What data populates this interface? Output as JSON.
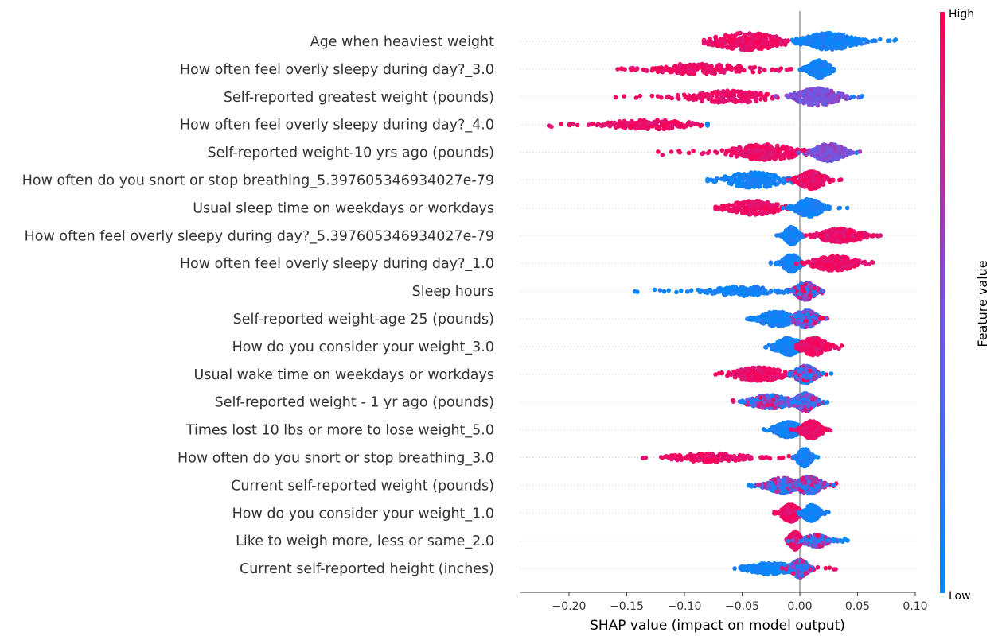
{
  "chart_data": {
    "type": "scatter",
    "subtype": "shap-beeswarm",
    "xlabel": "SHAP value (impact on model output)",
    "xlim": [
      -0.245,
      0.1
    ],
    "xticks": [
      -0.2,
      -0.15,
      -0.1,
      -0.05,
      0.0,
      0.05,
      0.1
    ],
    "xtick_labels": [
      "−0.20",
      "−0.15",
      "−0.10",
      "−0.05",
      "0.00",
      "0.05",
      "0.10"
    ],
    "colorbar": {
      "title": "Feature value",
      "high_label": "High",
      "low_label": "Low",
      "high_color": "#ff0052",
      "low_color": "#008bfb"
    },
    "features": [
      {
        "name": "Age when heaviest weight",
        "min": -0.083,
        "max": 0.083,
        "high_side": "neg",
        "clusters": [
          {
            "c": -0.045,
            "w": 0.04,
            "dens": 1.0,
            "col": "high"
          },
          {
            "c": 0.025,
            "w": 0.03,
            "dens": 1.0,
            "col": "low"
          }
        ]
      },
      {
        "name": "How often feel overly sleepy during day?_3.0",
        "min": -0.158,
        "max": 0.03,
        "high_side": "neg",
        "clusters": [
          {
            "c": -0.09,
            "w": 0.06,
            "dens": 0.6,
            "col": "high"
          },
          {
            "c": 0.017,
            "w": 0.012,
            "dens": 1.0,
            "col": "low"
          }
        ]
      },
      {
        "name": "Self-reported greatest weight (pounds)",
        "min": -0.165,
        "max": 0.06,
        "high_side": "neg",
        "clusters": [
          {
            "c": -0.06,
            "w": 0.05,
            "dens": 0.7,
            "col": "high"
          },
          {
            "c": 0.015,
            "w": 0.025,
            "dens": 1.0,
            "col": "mid"
          }
        ]
      },
      {
        "name": "How often feel overly sleepy during day?_4.0",
        "min": -0.228,
        "max": -0.08,
        "high_side": "neg",
        "clusters": [
          {
            "c": -0.13,
            "w": 0.05,
            "dens": 0.55,
            "col": "high"
          },
          {
            "c": 0.015,
            "w": 0.01,
            "dens": 1.0,
            "col": "low"
          }
        ]
      },
      {
        "name": "Self-reported weight-10 yrs ago (pounds)",
        "min": -0.127,
        "max": 0.052,
        "high_side": "neg",
        "clusters": [
          {
            "c": -0.03,
            "w": 0.04,
            "dens": 0.9,
            "col": "high"
          },
          {
            "c": 0.025,
            "w": 0.018,
            "dens": 1.0,
            "col": "mid"
          }
        ]
      },
      {
        "name": "How often do you snort or stop breathing_5.397605346934027e-79",
        "min": -0.08,
        "max": 0.038,
        "high_side": "pos",
        "clusters": [
          {
            "c": -0.04,
            "w": 0.035,
            "dens": 0.9,
            "col": "low"
          },
          {
            "c": 0.01,
            "w": 0.015,
            "dens": 1.0,
            "col": "high"
          }
        ]
      },
      {
        "name": "Usual sleep time on weekdays or workdays",
        "min": -0.073,
        "max": 0.043,
        "high_side": "neg",
        "clusters": [
          {
            "c": -0.04,
            "w": 0.03,
            "dens": 0.8,
            "col": "high"
          },
          {
            "c": 0.008,
            "w": 0.015,
            "dens": 1.0,
            "col": "low"
          }
        ]
      },
      {
        "name": "How often feel overly sleepy during day?_5.397605346934027e-79",
        "min": -0.02,
        "max": 0.07,
        "high_side": "pos",
        "clusters": [
          {
            "c": -0.007,
            "w": 0.008,
            "dens": 1.0,
            "col": "low"
          },
          {
            "c": 0.035,
            "w": 0.025,
            "dens": 0.8,
            "col": "high"
          }
        ]
      },
      {
        "name": "How often feel overly sleepy during day?_1.0",
        "min": -0.026,
        "max": 0.068,
        "high_side": "pos",
        "clusters": [
          {
            "c": -0.007,
            "w": 0.01,
            "dens": 1.0,
            "col": "low"
          },
          {
            "c": 0.03,
            "w": 0.025,
            "dens": 0.85,
            "col": "high"
          }
        ]
      },
      {
        "name": "Sleep hours",
        "min": -0.155,
        "max": 0.028,
        "high_side": "pos",
        "clusters": [
          {
            "c": -0.05,
            "w": 0.04,
            "dens": 0.55,
            "col": "low"
          },
          {
            "c": 0.005,
            "w": 0.012,
            "dens": 1.0,
            "col": "mixed"
          }
        ]
      },
      {
        "name": "Self-reported weight-age 25 (pounds)",
        "min": -0.052,
        "max": 0.026,
        "high_side": "pos",
        "clusters": [
          {
            "c": -0.02,
            "w": 0.02,
            "dens": 0.85,
            "col": "low"
          },
          {
            "c": 0.005,
            "w": 0.013,
            "dens": 1.0,
            "col": "mixed"
          }
        ]
      },
      {
        "name": "How do you consider your weight_3.0",
        "min": -0.032,
        "max": 0.037,
        "high_side": "pos",
        "clusters": [
          {
            "c": -0.01,
            "w": 0.015,
            "dens": 1.0,
            "col": "low"
          },
          {
            "c": 0.012,
            "w": 0.015,
            "dens": 1.0,
            "col": "high"
          }
        ]
      },
      {
        "name": "Usual wake time on weekdays or workdays",
        "min": -0.073,
        "max": 0.029,
        "high_side": "neg",
        "clusters": [
          {
            "c": -0.035,
            "w": 0.03,
            "dens": 0.8,
            "col": "high"
          },
          {
            "c": 0.005,
            "w": 0.012,
            "dens": 1.0,
            "col": "mixed"
          }
        ]
      },
      {
        "name": "Self-reported weight - 1 yr ago (pounds)",
        "min": -0.062,
        "max": 0.029,
        "high_side": "neg",
        "clusters": [
          {
            "c": -0.025,
            "w": 0.025,
            "dens": 0.8,
            "col": "mixed"
          },
          {
            "c": 0.005,
            "w": 0.012,
            "dens": 1.0,
            "col": "mixed"
          }
        ]
      },
      {
        "name": "Times lost 10 lbs or more to lose weight_5.0",
        "min": -0.035,
        "max": 0.033,
        "high_side": "pos",
        "clusters": [
          {
            "c": -0.01,
            "w": 0.015,
            "dens": 0.9,
            "col": "low"
          },
          {
            "c": 0.01,
            "w": 0.012,
            "dens": 1.0,
            "col": "high"
          }
        ]
      },
      {
        "name": "How often do you snort or stop breathing_3.0",
        "min": -0.138,
        "max": 0.02,
        "high_side": "neg",
        "clusters": [
          {
            "c": -0.08,
            "w": 0.045,
            "dens": 0.5,
            "col": "high"
          },
          {
            "c": 0.004,
            "w": 0.008,
            "dens": 1.0,
            "col": "low"
          }
        ]
      },
      {
        "name": "Current self-reported weight (pounds)",
        "min": -0.045,
        "max": 0.033,
        "high_side": "pos",
        "clusters": [
          {
            "c": -0.015,
            "w": 0.02,
            "dens": 0.85,
            "col": "mixed"
          },
          {
            "c": 0.008,
            "w": 0.015,
            "dens": 1.0,
            "col": "mixed"
          }
        ]
      },
      {
        "name": "How do you consider your weight_1.0",
        "min": -0.024,
        "max": 0.025,
        "high_side": "neg",
        "clusters": [
          {
            "c": -0.008,
            "w": 0.01,
            "dens": 1.0,
            "col": "high"
          },
          {
            "c": 0.01,
            "w": 0.01,
            "dens": 0.9,
            "col": "low"
          }
        ]
      },
      {
        "name": "Like to weigh more, less or same_2.0",
        "min": -0.013,
        "max": 0.043,
        "high_side": "neg",
        "clusters": [
          {
            "c": -0.004,
            "w": 0.007,
            "dens": 1.0,
            "col": "high"
          },
          {
            "c": 0.015,
            "w": 0.015,
            "dens": 0.7,
            "col": "mixed"
          }
        ]
      },
      {
        "name": "Current self-reported height (inches)",
        "min": -0.062,
        "max": 0.033,
        "high_side": "pos",
        "clusters": [
          {
            "c": -0.025,
            "w": 0.025,
            "dens": 0.7,
            "col": "low"
          },
          {
            "c": 0.0,
            "w": 0.01,
            "dens": 1.0,
            "col": "mixed"
          }
        ]
      }
    ]
  }
}
